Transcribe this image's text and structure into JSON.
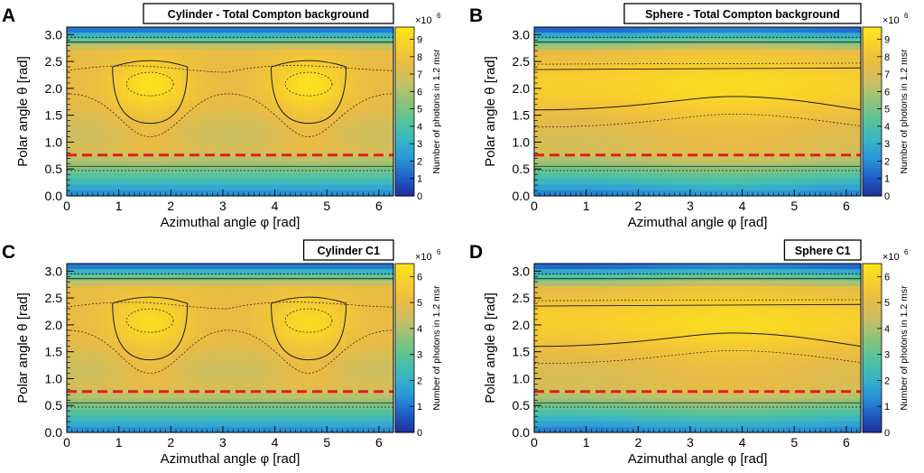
{
  "chart_data": [
    {
      "type": "heatmap",
      "panel_label": "A",
      "title": "Cylinder - Total Compton background",
      "xlabel": "Azimuthal angle φ   [rad]",
      "ylabel": "Polar angle θ   [rad]",
      "xlim": [
        0,
        6.28
      ],
      "ylim": [
        0,
        3.14
      ],
      "x_ticks": [
        "0",
        "1",
        "2",
        "3",
        "4",
        "5",
        "6"
      ],
      "y_ticks": [
        "0.0",
        "0.5",
        "1.0",
        "1.5",
        "2.0",
        "2.5",
        "3.0"
      ],
      "colorbar": {
        "label": "Number of photons in 1.2 msr",
        "multiplier": "×10",
        "exponent": "6",
        "ticks": [
          "0",
          "1",
          "2",
          "3",
          "4",
          "5",
          "6",
          "7",
          "8",
          "9"
        ],
        "max": 9.7
      },
      "dashed_line_theta": 0.76,
      "pattern": "cylinder",
      "peak_value": 9.5
    },
    {
      "type": "heatmap",
      "panel_label": "B",
      "title": "Sphere - Total Compton background",
      "xlabel": "Azimuthal angle φ   [rad]",
      "ylabel": "Polar angle θ   [rad]",
      "xlim": [
        0,
        6.28
      ],
      "ylim": [
        0,
        3.14
      ],
      "x_ticks": [
        "0",
        "1",
        "2",
        "3",
        "4",
        "5",
        "6"
      ],
      "y_ticks": [
        "0.0",
        "0.5",
        "1.0",
        "1.5",
        "2.0",
        "2.5",
        "3.0"
      ],
      "colorbar": {
        "label": "Number of photons in 1.2 msr",
        "multiplier": "×10",
        "exponent": "6",
        "ticks": [
          "0",
          "1",
          "2",
          "3",
          "4",
          "5",
          "6",
          "7",
          "8",
          "9"
        ],
        "max": 9.7
      },
      "dashed_line_theta": 0.76,
      "pattern": "sphere",
      "peak_value": 9.0
    },
    {
      "type": "heatmap",
      "panel_label": "C",
      "title": "Cylinder C1",
      "xlabel": "Azimuthal angle φ   [rad]",
      "ylabel": "Polar angle θ   [rad]",
      "xlim": [
        0,
        6.28
      ],
      "ylim": [
        0,
        3.14
      ],
      "x_ticks": [
        "0",
        "1",
        "2",
        "3",
        "4",
        "5",
        "6"
      ],
      "y_ticks": [
        "0.0",
        "0.5",
        "1.0",
        "1.5",
        "2.0",
        "2.5",
        "3.0"
      ],
      "colorbar": {
        "label": "Number of photons in 1.2 msr",
        "multiplier": "×10",
        "exponent": "6",
        "ticks": [
          "0",
          "1",
          "2",
          "3",
          "4",
          "5",
          "6"
        ],
        "max": 6.5
      },
      "dashed_line_theta": 0.76,
      "pattern": "cylinder",
      "peak_value": 6.2
    },
    {
      "type": "heatmap",
      "panel_label": "D",
      "title": "Sphere C1",
      "xlabel": "Azimuthal angle φ   [rad]",
      "ylabel": "Polar angle θ   [rad]",
      "xlim": [
        0,
        6.28
      ],
      "ylim": [
        0,
        3.14
      ],
      "x_ticks": [
        "0",
        "1",
        "2",
        "3",
        "4",
        "5",
        "6"
      ],
      "y_ticks": [
        "0.0",
        "0.5",
        "1.0",
        "1.5",
        "2.0",
        "2.5",
        "3.0"
      ],
      "colorbar": {
        "label": "Number of photons in 1.2 msr",
        "multiplier": "×10",
        "exponent": "6",
        "ticks": [
          "0",
          "1",
          "2",
          "3",
          "4",
          "5",
          "6"
        ],
        "max": 6.5
      },
      "dashed_line_theta": 0.76,
      "pattern": "sphere",
      "peak_value": 6.0
    }
  ],
  "colors": {
    "dashed_line": "#dd1f1f",
    "contour": "#1a1a1a",
    "axis": "#000000",
    "colormap": [
      "#1f2f96",
      "#1f5fc8",
      "#2a96d8",
      "#3ab5c4",
      "#55c39a",
      "#8cc37a",
      "#c6c065",
      "#e8bb45",
      "#f7cd2e",
      "#fbe61a"
    ]
  }
}
